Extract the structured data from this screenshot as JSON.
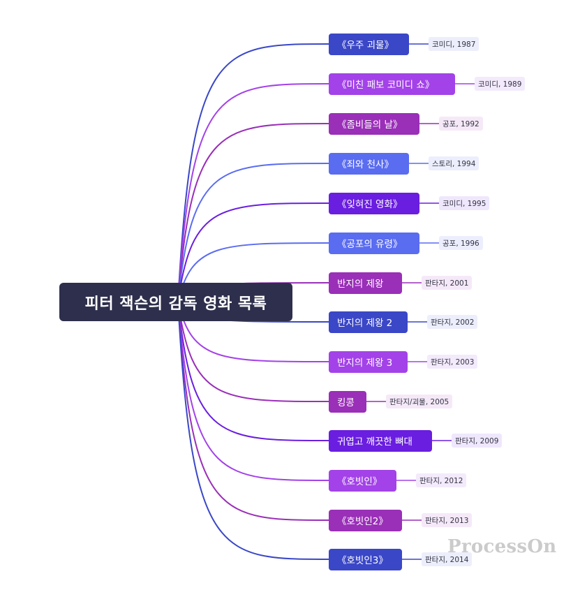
{
  "root": {
    "label": "피터 잭슨의 감독 영화 목록"
  },
  "movies": [
    {
      "title": "《우주 괴물》",
      "detail": "코미디, 1987",
      "color": "#3a47c7",
      "detail_bg": "#eceefb"
    },
    {
      "title": "《미친 패보 코미디 쇼》",
      "detail": "코미디, 1989",
      "color": "#a342e8",
      "detail_bg": "#f3eafc"
    },
    {
      "title": "《좀비들의 날》",
      "detail": "공포, 1992",
      "color": "#9a2fb8",
      "detail_bg": "#f5e9f8"
    },
    {
      "title": "《죄와 천사》",
      "detail": "스토리, 1994",
      "color": "#5a6cf0",
      "detail_bg": "#eceefd"
    },
    {
      "title": "《잊혀진 영화》",
      "detail": "코미디, 1995",
      "color": "#6a1ee0",
      "detail_bg": "#efe7fc"
    },
    {
      "title": "《공포의 유령》",
      "detail": "공포, 1996",
      "color": "#5a6cf0",
      "detail_bg": "#eceefd"
    },
    {
      "title": "반지의 제왕",
      "detail": "판타지, 2001",
      "color": "#9a2fb8",
      "detail_bg": "#f5e9f8"
    },
    {
      "title": "반지의 제왕 2",
      "detail": "판타지, 2002",
      "color": "#3a47c7",
      "detail_bg": "#eceefb"
    },
    {
      "title": "반지의 제왕 3",
      "detail": "판타지, 2003",
      "color": "#a342e8",
      "detail_bg": "#f3eafc"
    },
    {
      "title": "킹콩",
      "detail": "판타지/괴물, 2005",
      "color": "#9a2fb8",
      "detail_bg": "#f5e9f8"
    },
    {
      "title": "귀엽고 깨끗한 뼈대",
      "detail": "판타지, 2009",
      "color": "#6a1ee0",
      "detail_bg": "#efe7fc"
    },
    {
      "title": "《호빗인》",
      "detail": "판타지, 2012",
      "color": "#a342e8",
      "detail_bg": "#f3eafc"
    },
    {
      "title": "《호빗인2》",
      "detail": "판타지, 2013",
      "color": "#9a2fb8",
      "detail_bg": "#f5e9f8"
    },
    {
      "title": "《호빗인3》",
      "detail": "판타지, 2014",
      "color": "#3a47c7",
      "detail_bg": "#eceefb"
    }
  ],
  "watermark": "ProcessOn"
}
